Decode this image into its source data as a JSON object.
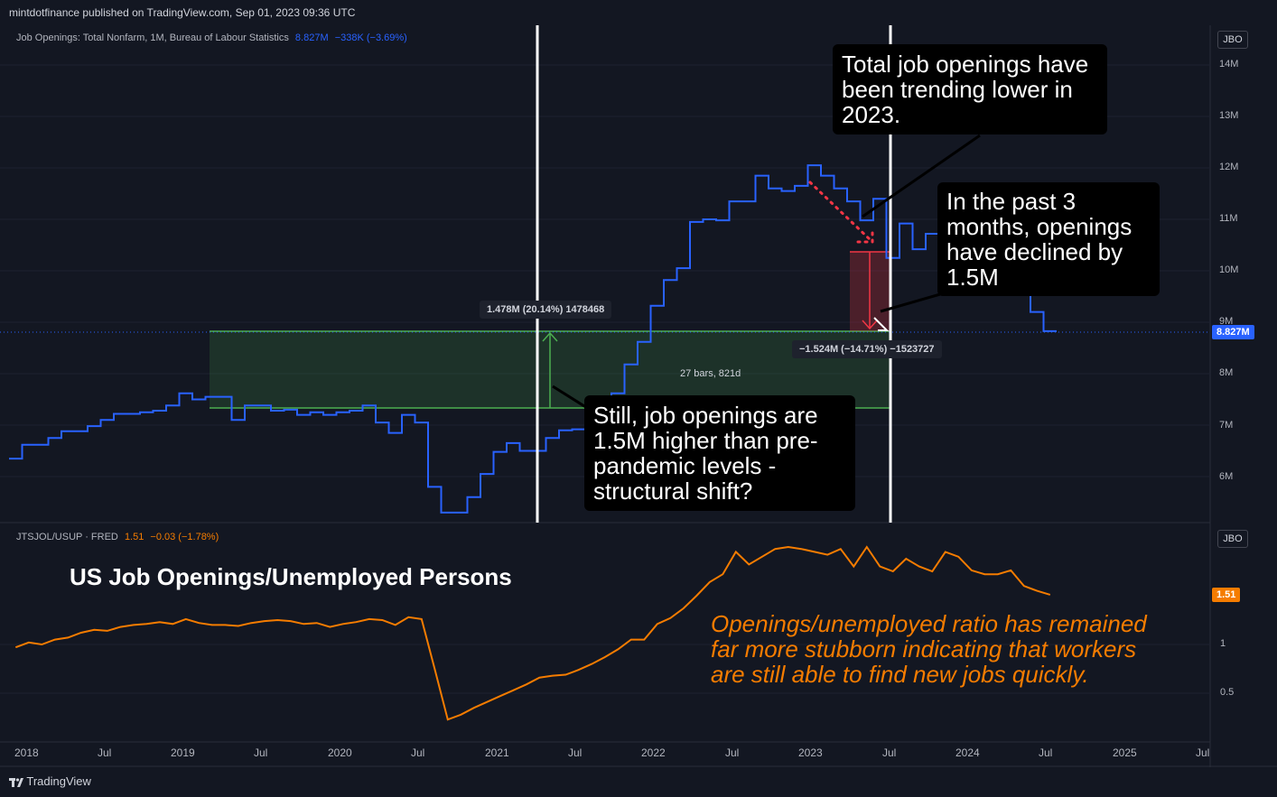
{
  "header": {
    "published": "mintdotfinance published on TradingView.com, Sep 01, 2023 09:36 UTC"
  },
  "footer": {
    "brand": "TradingView"
  },
  "top_pane": {
    "legend": {
      "name": "Job Openings: Total Nonfarm, 1M, Bureau of Labour Statistics",
      "value": "8.827M",
      "change": "−338K (−3.69%)"
    },
    "scale_button": "JBO",
    "y_ticks": [
      "14M",
      "13M",
      "12M",
      "11M",
      "10M",
      "9M",
      "8M",
      "7M",
      "6M"
    ],
    "last_value_tag": "8.827M",
    "measure_up": "1.478M (20.14%) 1478468",
    "measure_range": "27 bars, 821d",
    "measure_down": "−1.524M (−14.71%) −1523727",
    "callouts": {
      "trend": "Total job openings have been trending lower in 2023.",
      "decline": "In the past 3 months, openings have declined by 1.5M",
      "structural": "Still, job openings are 1.5M higher than pre-pandemic levels - structural shift?"
    }
  },
  "bottom_pane": {
    "legend": {
      "name": "JTSJOL/USUP · FRED",
      "value": "1.51",
      "change": "−0.03 (−1.78%)"
    },
    "scale_button": "JBO",
    "y_ticks": [
      "1",
      "0.5"
    ],
    "last_value_tag": "1.51",
    "title": "US Job Openings/Unemployed Persons",
    "annotation": "Openings/unemployed ratio has remained far more stubborn indicating that workers are still able to find new jobs quickly."
  },
  "x_axis": {
    "ticks": [
      "2018",
      "Jul",
      "2019",
      "Jul",
      "2020",
      "Jul",
      "2021",
      "Jul",
      "2022",
      "Jul",
      "2023",
      "Jul",
      "2024",
      "Jul",
      "2025",
      "Jul"
    ]
  },
  "colors": {
    "background": "#131722",
    "openings_line": "#2962ff",
    "ratio_line": "#f57c00",
    "green_box": "#4caf50",
    "red_box": "#f23645"
  },
  "chart_data": [
    {
      "type": "line",
      "step": true,
      "title": "",
      "xlabel": "",
      "ylabel": "",
      "ylim": [
        5.3,
        14.5
      ],
      "x_start": "2017-12",
      "x_interval": "1M",
      "series": [
        {
          "name": "Job Openings: Total Nonfarm",
          "values": [
            6.35,
            6.62,
            6.62,
            6.75,
            6.88,
            6.88,
            6.98,
            7.1,
            7.22,
            7.22,
            7.25,
            7.28,
            7.38,
            7.62,
            7.5,
            7.55,
            7.55,
            7.1,
            7.38,
            7.38,
            7.28,
            7.3,
            7.2,
            7.25,
            7.2,
            7.25,
            7.28,
            7.38,
            7.05,
            6.85,
            7.2,
            7.05,
            5.8,
            5.3,
            5.3,
            5.6,
            6.05,
            6.48,
            6.65,
            6.5,
            6.5,
            6.75,
            6.9,
            6.92,
            6.98,
            7.2,
            7.62,
            8.18,
            8.62,
            9.32,
            9.82,
            10.05,
            10.95,
            11.0,
            10.98,
            11.35,
            11.35,
            11.85,
            11.6,
            11.55,
            11.65,
            12.05,
            11.85,
            11.6,
            11.35,
            10.98,
            11.4,
            10.25,
            10.92,
            10.42,
            10.72,
            10.68,
            11.25,
            10.68,
            10.2,
            9.75,
            10.35,
            9.65,
            9.2,
            8.827
          ]
        }
      ]
    },
    {
      "type": "line",
      "title": "US Job Openings/Unemployed Persons",
      "xlabel": "",
      "ylabel": "",
      "ylim": [
        0,
        2.0
      ],
      "x_start": "2017-12",
      "x_interval": "1M",
      "series": [
        {
          "name": "JTSJOL/USUP",
          "values": [
            0.97,
            1.02,
            1.0,
            1.05,
            1.07,
            1.12,
            1.15,
            1.14,
            1.18,
            1.2,
            1.21,
            1.23,
            1.21,
            1.26,
            1.22,
            1.2,
            1.2,
            1.19,
            1.22,
            1.24,
            1.25,
            1.24,
            1.21,
            1.22,
            1.18,
            1.21,
            1.23,
            1.26,
            1.25,
            1.2,
            1.28,
            1.26,
            0.75,
            0.23,
            0.28,
            0.35,
            0.41,
            0.47,
            0.53,
            0.59,
            0.66,
            0.68,
            0.69,
            0.74,
            0.8,
            0.87,
            0.95,
            1.05,
            1.05,
            1.21,
            1.27,
            1.37,
            1.5,
            1.64,
            1.72,
            1.95,
            1.82,
            1.9,
            1.98,
            2.0,
            1.98,
            1.95,
            1.92,
            1.98,
            1.8,
            2.0,
            1.8,
            1.75,
            1.88,
            1.8,
            1.75,
            1.95,
            1.9,
            1.76,
            1.72,
            1.72,
            1.76,
            1.6,
            1.55,
            1.51
          ]
        }
      ]
    }
  ]
}
